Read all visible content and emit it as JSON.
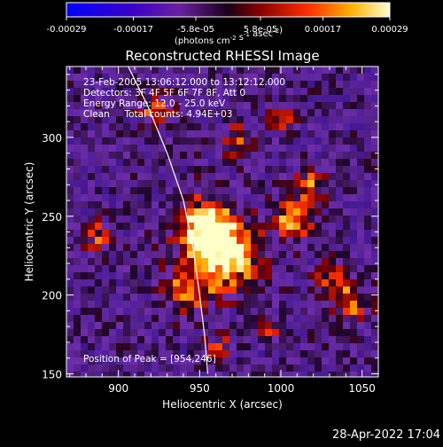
{
  "chart_data": {
    "type": "heatmap",
    "title": "Reconstructed RHESSI Image",
    "xlabel": "Heliocentric X (arcsec)",
    "ylabel": "Heliocentric Y (arcsec)",
    "xlim": [
      868,
      1060
    ],
    "ylim": [
      148,
      345
    ],
    "xticks": [
      900,
      950,
      1000,
      1050
    ],
    "yticks": [
      150,
      200,
      250,
      300
    ],
    "colorbar": {
      "ticks": [
        "-0.00029",
        "-0.00017",
        "-5.8e-05",
        "5.8e-05",
        "0.00017",
        "0.00029"
      ],
      "values": [
        -0.00029,
        -0.00017,
        -5.8e-05,
        5.8e-05,
        0.00017,
        0.00029
      ],
      "unit_label": "(photons cm",
      "unit_sup1": "-2",
      "unit_mid": " s",
      "unit_sup2": "-1",
      "unit_mid2": " asec",
      "unit_sup3": "-2",
      "unit_end": ")"
    },
    "annotations": [
      "23-Feb-2005 13:06:12.000 to 13:12:12.000",
      "Detectors: 3F 4F 5F 6F 7F 8F, Att 0",
      "Energy Range: 12.0 - 25.0 keV",
      "Clean     Total counts: 4.94E+03"
    ],
    "peak_label": "Position of Peak = [954,246]",
    "peak": [
      954,
      246
    ],
    "hotspots": [
      {
        "x": 952,
        "y": 245,
        "r": 18,
        "value": 0.00029
      },
      {
        "x": 965,
        "y": 225,
        "r": 20,
        "value": 0.00024
      },
      {
        "x": 940,
        "y": 205,
        "r": 14,
        "value": 0.00018
      },
      {
        "x": 1005,
        "y": 250,
        "r": 12,
        "value": 0.00022
      },
      {
        "x": 1015,
        "y": 272,
        "r": 10,
        "value": 0.00016
      },
      {
        "x": 1040,
        "y": 198,
        "r": 12,
        "value": 0.00017
      },
      {
        "x": 1030,
        "y": 215,
        "r": 9,
        "value": 0.00015
      },
      {
        "x": 885,
        "y": 240,
        "r": 9,
        "value": 0.00014
      },
      {
        "x": 920,
        "y": 320,
        "r": 10,
        "value": 0.00013
      },
      {
        "x": 970,
        "y": 300,
        "r": 10,
        "value": 0.00014
      },
      {
        "x": 1000,
        "y": 315,
        "r": 9,
        "value": 0.00012
      },
      {
        "x": 990,
        "y": 180,
        "r": 8,
        "value": 0.00011
      },
      {
        "x": 960,
        "y": 170,
        "r": 9,
        "value": 0.00012
      }
    ],
    "limb_curve": [
      [
        906,
        345
      ],
      [
        918,
        320
      ],
      [
        930,
        290
      ],
      [
        940,
        260
      ],
      [
        946,
        230
      ],
      [
        950,
        200
      ],
      [
        953,
        175
      ],
      [
        955,
        150
      ]
    ]
  },
  "footer": {
    "timestamp": "28-Apr-2022 17:04"
  }
}
